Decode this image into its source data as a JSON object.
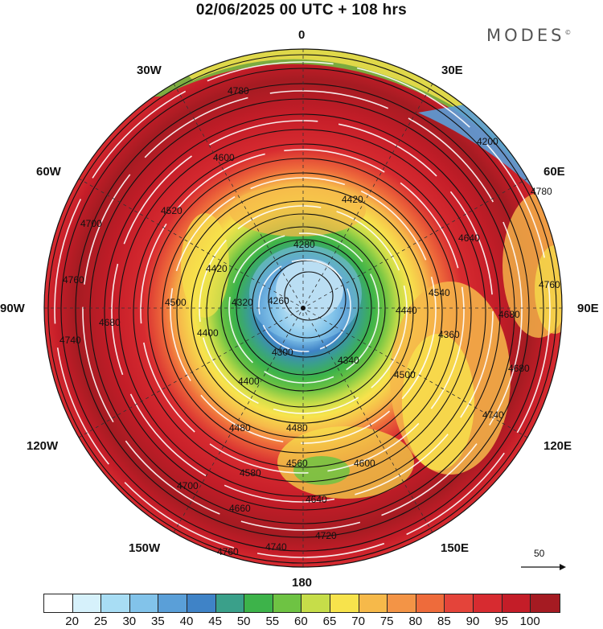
{
  "title": "02/06/2025  00 UTC  + 108 hrs",
  "brand": "MODES",
  "brand_mark": "©",
  "longitude_labels": {
    "lon_0": "0",
    "lon_30e": "30E",
    "lon_60e": "60E",
    "lon_90e": "90E",
    "lon_120e": "120E",
    "lon_150e": "150E",
    "lon_180": "180",
    "lon_150w": "150W",
    "lon_120w": "120W",
    "lon_90w": "90W",
    "lon_60w": "60W",
    "lon_30w": "30W"
  },
  "contour_labels": [
    "4780",
    "4760",
    "4740",
    "4720",
    "4700",
    "4680",
    "4660",
    "4640",
    "4600",
    "4580",
    "4560",
    "4540",
    "4520",
    "4500",
    "4480",
    "4440",
    "4420",
    "4400",
    "4360",
    "4340",
    "4320",
    "4300",
    "4280",
    "4260",
    "4200"
  ],
  "reference_vector": {
    "value": "50"
  },
  "colorbar": {
    "colors": [
      "#ffffff",
      "#d6f1fb",
      "#a8ddf4",
      "#82c3ea",
      "#5a9fd8",
      "#3f83c7",
      "#3aa08a",
      "#3db34a",
      "#6ec343",
      "#c6dd49",
      "#f7e34c",
      "#f6b94a",
      "#f39446",
      "#ee6b3b",
      "#e4443a",
      "#d72b30",
      "#c41d28",
      "#a51b22"
    ],
    "ticks": [
      "20",
      "25",
      "30",
      "35",
      "40",
      "45",
      "50",
      "55",
      "60",
      "65",
      "70",
      "75",
      "80",
      "85",
      "90",
      "95",
      "100"
    ]
  }
}
